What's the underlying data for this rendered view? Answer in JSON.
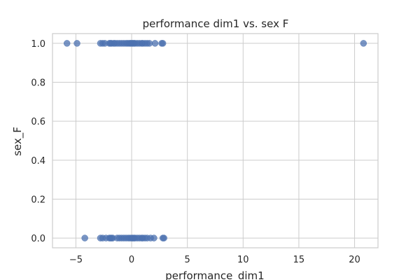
{
  "chart_data": {
    "type": "scatter",
    "title": "performance dim1 vs. sex F",
    "xlabel": "performance_dim1",
    "ylabel": "sex_F",
    "xlim": [
      -7.1,
      22.1
    ],
    "ylim": [
      -0.05,
      1.05
    ],
    "xticks": [
      -5,
      0,
      5,
      10,
      15,
      20
    ],
    "xtick_labels": [
      "−5",
      "0",
      "5",
      "10",
      "15",
      "20"
    ],
    "yticks": [
      0.0,
      0.2,
      0.4,
      0.6,
      0.8,
      1.0
    ],
    "ytick_labels": [
      "0.0",
      "0.2",
      "0.4",
      "0.6",
      "0.8",
      "1.0"
    ],
    "grid": true,
    "series": [
      {
        "color": "#4c72b0",
        "x": [
          -5.8,
          -4.9,
          -2.8,
          -2.6,
          -2.4,
          -2.0,
          -1.9,
          -1.8,
          -1.6,
          -1.5,
          -1.3,
          -1.1,
          -0.9,
          -0.7,
          -0.5,
          -0.35,
          -0.2,
          -0.1,
          0.0,
          0.1,
          0.2,
          0.3,
          0.5,
          0.7,
          0.9,
          1.0,
          1.2,
          1.4,
          1.6,
          2.1,
          2.7,
          2.8,
          20.8,
          -4.2,
          -2.8,
          -2.6,
          -2.3,
          -2.0,
          -1.9,
          -1.8,
          -1.7,
          -1.3,
          -1.1,
          -0.9,
          -0.7,
          -0.5,
          -0.3,
          -0.15,
          0.0,
          0.1,
          0.2,
          0.3,
          0.5,
          0.7,
          0.9,
          1.0,
          1.2,
          1.4,
          1.7,
          2.0,
          2.8,
          2.9
        ],
        "y": [
          1,
          1,
          1,
          1,
          1,
          1,
          1,
          1,
          1,
          1,
          1,
          1,
          1,
          1,
          1,
          1,
          1,
          1,
          1,
          1,
          1,
          1,
          1,
          1,
          1,
          1,
          1,
          1,
          1,
          1,
          1,
          1,
          1,
          0,
          0,
          0,
          0,
          0,
          0,
          0,
          0,
          0,
          0,
          0,
          0,
          0,
          0,
          0,
          0,
          0,
          0,
          0,
          0,
          0,
          0,
          0,
          0,
          0,
          0,
          0,
          0,
          0
        ]
      }
    ]
  }
}
